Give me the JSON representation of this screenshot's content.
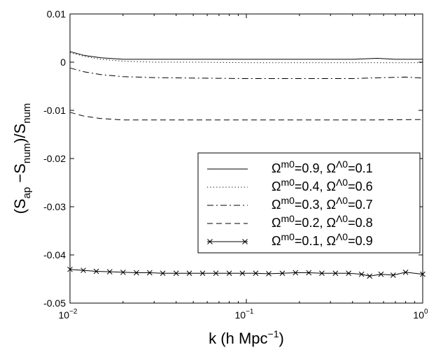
{
  "chart_data": {
    "type": "line",
    "xscale": "log",
    "xlim": [
      0.01,
      1
    ],
    "ylim": [
      -0.05,
      0.01
    ],
    "grid": false,
    "legend_position": "right",
    "xlabel": {
      "base": "k (h Mpc",
      "sup": "−1",
      "tail": ")"
    },
    "ylabel": {
      "p1": "(S",
      "s1": "ap",
      "p2": " −S",
      "s2": "num",
      "p3": ")/S",
      "s3": "num"
    },
    "x_ticks": [
      {
        "value": 0.01,
        "base": "10",
        "exp": "−2"
      },
      {
        "value": 0.1,
        "base": "10",
        "exp": "−1"
      },
      {
        "value": 1,
        "base": "10",
        "exp": "0"
      }
    ],
    "y_ticks": [
      {
        "value": 0.01,
        "label": "0.01"
      },
      {
        "value": 0,
        "label": "0"
      },
      {
        "value": -0.01,
        "label": "-0.01"
      },
      {
        "value": -0.02,
        "label": "-0.02"
      },
      {
        "value": -0.03,
        "label": "-0.03"
      },
      {
        "value": -0.04,
        "label": "-0.04"
      },
      {
        "value": -0.05,
        "label": "-0.05"
      }
    ],
    "series": [
      {
        "legend": {
          "a": "Ω",
          "asub": "m0",
          "b": "=0.9, ",
          "c": "Ω",
          "csub": "Λ0",
          "d": "=0.1"
        },
        "style": "solid",
        "x": [
          0.01,
          0.012,
          0.015,
          0.02,
          0.03,
          0.05,
          0.1,
          0.2,
          0.4,
          0.55,
          0.7,
          1
        ],
        "y": [
          0.0022,
          0.0014,
          0.0009,
          0.0006,
          0.0006,
          0.0006,
          0.0006,
          0.0006,
          0.0006,
          0.0008,
          0.0006,
          0.0006
        ]
      },
      {
        "legend": {
          "a": "Ω",
          "asub": "m0",
          "b": "=0.4, ",
          "c": "Ω",
          "csub": "Λ0",
          "d": "=0.6"
        },
        "style": "dotted",
        "x": [
          0.01,
          0.012,
          0.015,
          0.02,
          0.03,
          0.05,
          0.1,
          0.2,
          0.5,
          1
        ],
        "y": [
          0.002,
          0.0012,
          0.0006,
          0.0002,
          0.0,
          0.0,
          -0.0001,
          -0.0001,
          -0.0001,
          -0.0001
        ]
      },
      {
        "legend": {
          "a": "Ω",
          "asub": "m0",
          "b": "=0.3, ",
          "c": "Ω",
          "csub": "Λ0",
          "d": "=0.7"
        },
        "style": "dashdot",
        "x": [
          0.01,
          0.012,
          0.015,
          0.02,
          0.03,
          0.05,
          0.1,
          0.2,
          0.4,
          0.6,
          0.8,
          1
        ],
        "y": [
          -0.0012,
          -0.002,
          -0.0026,
          -0.003,
          -0.0032,
          -0.0033,
          -0.0034,
          -0.0034,
          -0.0034,
          -0.0032,
          -0.0031,
          -0.0033
        ]
      },
      {
        "legend": {
          "a": "Ω",
          "asub": "m0",
          "b": "=0.2, ",
          "c": "Ω",
          "csub": "Λ0",
          "d": "=0.8"
        },
        "style": "dashed",
        "x": [
          0.01,
          0.012,
          0.015,
          0.02,
          0.03,
          0.05,
          0.1,
          0.2,
          0.5,
          1
        ],
        "y": [
          -0.0104,
          -0.0112,
          -0.0117,
          -0.012,
          -0.012,
          -0.012,
          -0.012,
          -0.012,
          -0.012,
          -0.0119
        ]
      },
      {
        "legend": {
          "a": "Ω",
          "asub": "m0",
          "b": "=0.1, ",
          "c": "Ω",
          "csub": "Λ0",
          "d": "=0.9"
        },
        "style": "solid-x",
        "x": [
          0.01,
          0.0119,
          0.0141,
          0.0168,
          0.02,
          0.0238,
          0.0283,
          0.0336,
          0.04,
          0.0475,
          0.0565,
          0.0672,
          0.08,
          0.095,
          0.113,
          0.134,
          0.16,
          0.19,
          0.226,
          0.268,
          0.32,
          0.38,
          0.45,
          0.5,
          0.58,
          0.68,
          0.8,
          1
        ],
        "y": [
          -0.043,
          -0.0432,
          -0.0434,
          -0.0435,
          -0.0436,
          -0.0437,
          -0.0437,
          -0.0438,
          -0.0438,
          -0.0438,
          -0.0438,
          -0.0438,
          -0.0438,
          -0.0438,
          -0.0438,
          -0.0439,
          -0.0438,
          -0.0437,
          -0.0437,
          -0.0438,
          -0.0438,
          -0.0438,
          -0.044,
          -0.0444,
          -0.044,
          -0.0442,
          -0.0436,
          -0.044
        ]
      }
    ]
  }
}
